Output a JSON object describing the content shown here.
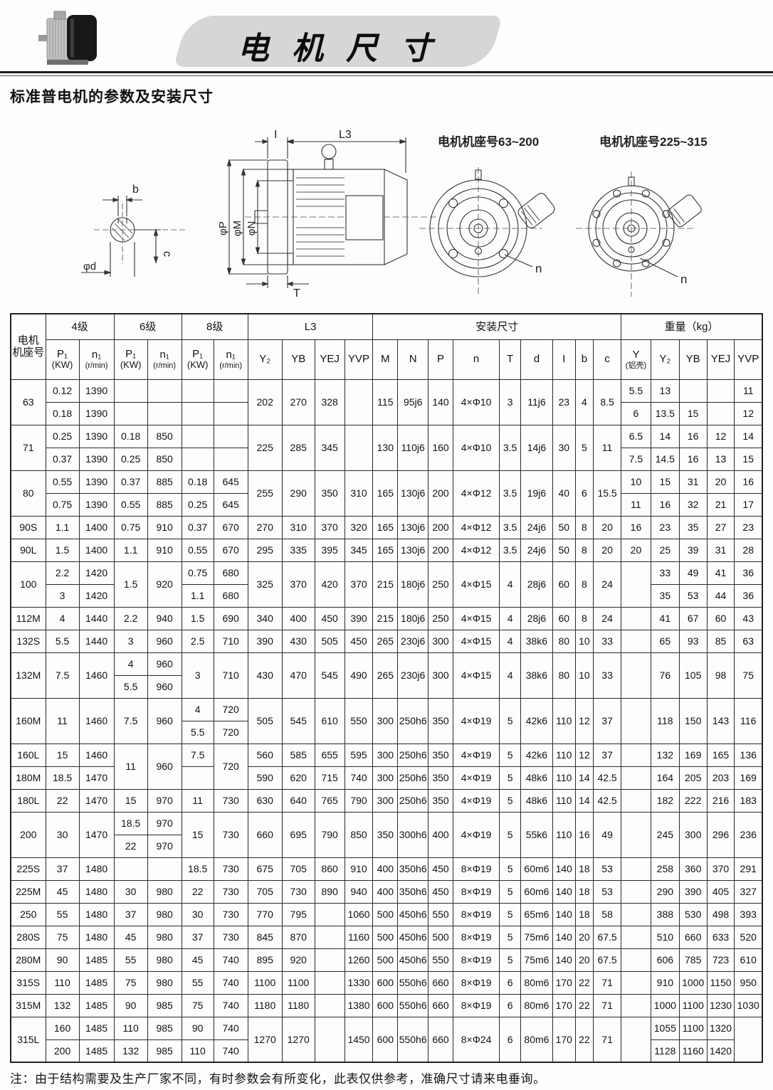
{
  "page": {
    "banner_title": "电 机 尺 寸",
    "subtitle": "标准普电机的参数及安装尺寸",
    "footnote": "注：由于结构需要及生产厂家不同，有时参数会有所变化，此表仅供参考，准确尺寸请来电垂询。"
  },
  "diagrams": {
    "flange_small_title": "电机机座号63~200",
    "flange_large_title": "电机机座号225~315",
    "dim": {
      "b": "b",
      "c": "c",
      "d": "φd",
      "i": "I",
      "l3": "L3",
      "p": "φP",
      "m": "φM",
      "n_dia": "φN",
      "t": "T",
      "bolt": "n"
    }
  },
  "table": {
    "header": {
      "frame_label": "电机\n机座号",
      "group_4": "4级",
      "group_6": "6级",
      "group_8": "8级",
      "group_l3": "L3",
      "group_install": "安装尺寸",
      "group_weight": "重量（kg）",
      "p_top": "P₁",
      "p_unit": "(KW)",
      "n_top": "n₁",
      "n_unit": "(r/min)",
      "l3_cols": [
        "Y₂",
        "YB",
        "YEJ",
        "YVP"
      ],
      "install_cols": [
        "M",
        "N",
        "P",
        "n",
        "T",
        "d",
        "I",
        "b",
        "c"
      ],
      "weight_y_top": "Y",
      "weight_y_unit": "(铝壳)",
      "weight_cols_rest": [
        "Y₂",
        "YB",
        "YEJ",
        "YVP"
      ]
    },
    "rows": [
      [
        [
          "63",
          2
        ],
        "0.12",
        "1390",
        "",
        "",
        "",
        "",
        [
          "202",
          2
        ],
        [
          "270",
          2
        ],
        [
          "328",
          2
        ],
        [
          "",
          2
        ],
        [
          "115",
          2
        ],
        [
          "95j6",
          2
        ],
        [
          "140",
          2
        ],
        [
          "4×Φ10",
          2
        ],
        [
          "3",
          2
        ],
        [
          "11j6",
          2
        ],
        [
          "23",
          2
        ],
        [
          "4",
          2
        ],
        [
          "8.5",
          2
        ],
        "5.5",
        "13",
        "",
        "",
        "11"
      ],
      [
        "0.18",
        "1390",
        "",
        "",
        "",
        "",
        "6",
        "13.5",
        "15",
        "",
        "12"
      ],
      [
        [
          "71",
          2
        ],
        "0.25",
        "1390",
        "0.18",
        "850",
        "",
        "",
        [
          "225",
          2
        ],
        [
          "285",
          2
        ],
        [
          "345",
          2
        ],
        [
          "",
          2
        ],
        [
          "130",
          2
        ],
        [
          "110j6",
          2
        ],
        [
          "160",
          2
        ],
        [
          "4×Φ10",
          2
        ],
        [
          "3.5",
          2
        ],
        [
          "14j6",
          2
        ],
        [
          "30",
          2
        ],
        [
          "5",
          2
        ],
        [
          "11",
          2
        ],
        "6.5",
        "14",
        "16",
        "12",
        "14"
      ],
      [
        "0.37",
        "1390",
        "0.25",
        "850",
        "",
        "",
        "7.5",
        "14.5",
        "16",
        "13",
        "15"
      ],
      [
        [
          "80",
          2
        ],
        "0.55",
        "1390",
        "0.37",
        "885",
        "0.18",
        "645",
        [
          "255",
          2
        ],
        [
          "290",
          2
        ],
        [
          "350",
          2
        ],
        [
          "310",
          2
        ],
        [
          "165",
          2
        ],
        [
          "130j6",
          2
        ],
        [
          "200",
          2
        ],
        [
          "4×Φ12",
          2
        ],
        [
          "3.5",
          2
        ],
        [
          "19j6",
          2
        ],
        [
          "40",
          2
        ],
        [
          "6",
          2
        ],
        [
          "15.5",
          2
        ],
        "10",
        "15",
        "31",
        "20",
        "16"
      ],
      [
        "0.75",
        "1390",
        "0.55",
        "885",
        "0.25",
        "645",
        "11",
        "16",
        "32",
        "21",
        "17"
      ],
      [
        "90S",
        "1.1",
        "1400",
        "0.75",
        "910",
        "0.37",
        "670",
        "270",
        "310",
        "370",
        "320",
        "165",
        "130j6",
        "200",
        "4×Φ12",
        "3.5",
        "24j6",
        "50",
        "8",
        "20",
        "16",
        "23",
        "35",
        "27",
        "23"
      ],
      [
        "90L",
        "1.5",
        "1400",
        "1.1",
        "910",
        "0.55",
        "670",
        "295",
        "335",
        "395",
        "345",
        "165",
        "130j6",
        "200",
        "4×Φ12",
        "3.5",
        "24j6",
        "50",
        "8",
        "20",
        "20",
        "25",
        "39",
        "31",
        "28"
      ],
      [
        [
          "100",
          2
        ],
        "2.2",
        "1420",
        [
          "1.5",
          2
        ],
        [
          "920",
          2
        ],
        "0.75",
        "680",
        [
          "325",
          2
        ],
        [
          "370",
          2
        ],
        [
          "420",
          2
        ],
        [
          "370",
          2
        ],
        [
          "215",
          2
        ],
        [
          "180j6",
          2
        ],
        [
          "250",
          2
        ],
        [
          "4×Φ15",
          2
        ],
        [
          "4",
          2
        ],
        [
          "28j6",
          2
        ],
        [
          "60",
          2
        ],
        [
          "8",
          2
        ],
        [
          "24",
          2
        ],
        [
          "",
          2
        ],
        "33",
        "49",
        "41",
        "36"
      ],
      [
        "3",
        "1420",
        "1.1",
        "680",
        "35",
        "53",
        "44",
        "36"
      ],
      [
        "112M",
        "4",
        "1440",
        "2.2",
        "940",
        "1.5",
        "690",
        "340",
        "400",
        "450",
        "390",
        "215",
        "180j6",
        "250",
        "4×Φ15",
        "4",
        "28j6",
        "60",
        "8",
        "24",
        "",
        "41",
        "67",
        "60",
        "43"
      ],
      [
        "132S",
        "5.5",
        "1440",
        "3",
        "960",
        "2.5",
        "710",
        "390",
        "430",
        "505",
        "450",
        "265",
        "230j6",
        "300",
        "4×Φ15",
        "4",
        "38k6",
        "80",
        "10",
        "33",
        "",
        "65",
        "93",
        "85",
        "63"
      ],
      [
        [
          "132M",
          2
        ],
        [
          "7.5",
          2
        ],
        [
          "1460",
          2
        ],
        "4",
        "960",
        [
          "3",
          2
        ],
        [
          "710",
          2
        ],
        [
          "430",
          2
        ],
        [
          "470",
          2
        ],
        [
          "545",
          2
        ],
        [
          "490",
          2
        ],
        [
          "265",
          2
        ],
        [
          "230j6",
          2
        ],
        [
          "300",
          2
        ],
        [
          "4×Φ15",
          2
        ],
        [
          "4",
          2
        ],
        [
          "38k6",
          2
        ],
        [
          "80",
          2
        ],
        [
          "10",
          2
        ],
        [
          "33",
          2
        ],
        [
          "",
          2
        ],
        [
          "76",
          2
        ],
        [
          "105",
          2
        ],
        [
          "98",
          2
        ],
        [
          "75",
          2
        ]
      ],
      [
        "5.5",
        "960"
      ],
      [
        [
          "160M",
          2
        ],
        [
          "11",
          2
        ],
        [
          "1460",
          2
        ],
        [
          "7.5",
          2
        ],
        [
          "960",
          2
        ],
        "4",
        "720",
        [
          "505",
          2
        ],
        [
          "545",
          2
        ],
        [
          "610",
          2
        ],
        [
          "550",
          2
        ],
        [
          "300",
          2
        ],
        [
          "250h6",
          2
        ],
        [
          "350",
          2
        ],
        [
          "4×Φ19",
          2
        ],
        [
          "5",
          2
        ],
        [
          "42k6",
          2
        ],
        [
          "110",
          2
        ],
        [
          "12",
          2
        ],
        [
          "37",
          2
        ],
        [
          "",
          2
        ],
        [
          "118",
          2
        ],
        [
          "150",
          2
        ],
        [
          "143",
          2
        ],
        [
          "116",
          2
        ]
      ],
      [
        "5.5",
        "720"
      ],
      [
        "160L",
        "15",
        "1460",
        [
          "11",
          2
        ],
        [
          "960",
          2
        ],
        "7.5",
        [
          "720",
          2
        ],
        "560",
        "585",
        "655",
        "595",
        "300",
        "250h6",
        "350",
        "4×Φ19",
        "5",
        "42k6",
        "110",
        "12",
        "37",
        "",
        "132",
        "169",
        "165",
        "136"
      ],
      [
        "180M",
        "18.5",
        "1470",
        "",
        "590",
        "620",
        "715",
        "740",
        "300",
        "250h6",
        "350",
        "4×Φ19",
        "5",
        "48k6",
        "110",
        "14",
        "42.5",
        "",
        "164",
        "205",
        "203",
        "169"
      ],
      [
        "180L",
        "22",
        "1470",
        "15",
        "970",
        "11",
        "730",
        "630",
        "640",
        "765",
        "790",
        "300",
        "250h6",
        "350",
        "4×Φ19",
        "5",
        "48k6",
        "110",
        "14",
        "42.5",
        "",
        "182",
        "222",
        "216",
        "183"
      ],
      [
        [
          "200",
          2
        ],
        [
          "30",
          2
        ],
        [
          "1470",
          2
        ],
        "18.5",
        "970",
        [
          "15",
          2
        ],
        [
          "730",
          2
        ],
        [
          "660",
          2
        ],
        [
          "695",
          2
        ],
        [
          "790",
          2
        ],
        [
          "850",
          2
        ],
        [
          "350",
          2
        ],
        [
          "300h6",
          2
        ],
        [
          "400",
          2
        ],
        [
          "4×Φ19",
          2
        ],
        [
          "5",
          2
        ],
        [
          "55k6",
          2
        ],
        [
          "110",
          2
        ],
        [
          "16",
          2
        ],
        [
          "49",
          2
        ],
        [
          "",
          2
        ],
        [
          "245",
          2
        ],
        [
          "300",
          2
        ],
        [
          "296",
          2
        ],
        [
          "236",
          2
        ]
      ],
      [
        "22",
        "970"
      ],
      [
        "225S",
        "37",
        "1480",
        "",
        "",
        "18.5",
        "730",
        "675",
        "705",
        "860",
        "910",
        "400",
        "350h6",
        "450",
        "8×Φ19",
        "5",
        "60m6",
        "140",
        "18",
        "53",
        "",
        "258",
        "360",
        "370",
        "291"
      ],
      [
        "225M",
        "45",
        "1480",
        "30",
        "980",
        "22",
        "730",
        "705",
        "730",
        "890",
        "940",
        "400",
        "350h6",
        "450",
        "8×Φ19",
        "5",
        "60m6",
        "140",
        "18",
        "53",
        "",
        "290",
        "390",
        "405",
        "327"
      ],
      [
        "250",
        "55",
        "1480",
        "37",
        "980",
        "30",
        "730",
        "770",
        "795",
        "",
        "1060",
        "500",
        "450h6",
        "550",
        "8×Φ19",
        "5",
        "65m6",
        "140",
        "18",
        "58",
        "",
        "388",
        "530",
        "498",
        "393"
      ],
      [
        "280S",
        "75",
        "1480",
        "45",
        "980",
        "37",
        "730",
        "845",
        "870",
        "",
        "1160",
        "500",
        "450h6",
        "500",
        "8×Φ19",
        "5",
        "75m6",
        "140",
        "20",
        "67.5",
        "",
        "510",
        "660",
        "633",
        "520"
      ],
      [
        "280M",
        "90",
        "1485",
        "55",
        "980",
        "45",
        "740",
        "895",
        "920",
        "",
        "1260",
        "500",
        "450h6",
        "550",
        "8×Φ19",
        "5",
        "75m6",
        "140",
        "20",
        "67.5",
        "",
        "606",
        "785",
        "723",
        "610"
      ],
      [
        "315S",
        "110",
        "1485",
        "75",
        "980",
        "55",
        "740",
        "1100",
        "1100",
        "",
        "1330",
        "600",
        "550h6",
        "660",
        "8×Φ19",
        "6",
        "80m6",
        "170",
        "22",
        "71",
        "",
        "910",
        "1000",
        "1150",
        "950"
      ],
      [
        "315M",
        "132",
        "1485",
        "90",
        "985",
        "75",
        "740",
        "1180",
        "1180",
        "",
        "1380",
        "600",
        "550h6",
        "660",
        "8×Φ19",
        "6",
        "80m6",
        "170",
        "22",
        "71",
        "",
        "1000",
        "1100",
        "1230",
        "1030"
      ],
      [
        [
          "315L",
          2
        ],
        "160",
        "1485",
        "110",
        "985",
        "90",
        "740",
        [
          "1270",
          2
        ],
        [
          "1270",
          2
        ],
        [
          "",
          2
        ],
        [
          "1450",
          2
        ],
        [
          "600",
          2
        ],
        [
          "550h6",
          2
        ],
        [
          "660",
          2
        ],
        [
          "8×Φ24",
          2
        ],
        [
          "6",
          2
        ],
        [
          "80m6",
          2
        ],
        [
          "170",
          2
        ],
        [
          "22",
          2
        ],
        [
          "71",
          2
        ],
        [
          "",
          2
        ],
        "1055",
        "1100",
        "1320",
        [
          "",
          2
        ]
      ],
      [
        "200",
        "1485",
        "132",
        "985",
        "110",
        "740",
        "1128",
        "1160",
        "1420"
      ]
    ]
  }
}
